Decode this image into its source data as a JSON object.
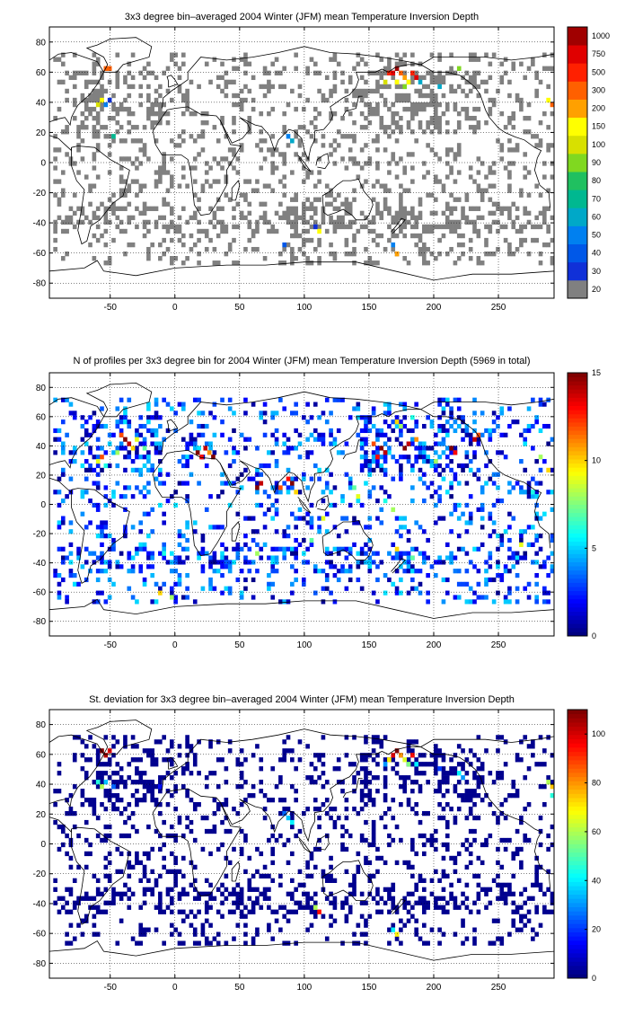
{
  "chart_data": [
    {
      "type": "heatmap",
      "title": "3x3 degree bin–averaged 2004 Winter (JFM) mean Temperature Inversion Depth",
      "xlabel": "",
      "ylabel": "",
      "xlim": [
        -97,
        293
      ],
      "ylim": [
        -90,
        90
      ],
      "xticks": [
        -50,
        0,
        50,
        100,
        150,
        200,
        250
      ],
      "yticks": [
        80,
        60,
        40,
        20,
        0,
        -20,
        -40,
        -60,
        -80
      ],
      "grid": true,
      "colorbar": {
        "scale": "categorical",
        "labels": [
          "20",
          "30",
          "40",
          "50",
          "60",
          "70",
          "80",
          "90",
          "100",
          "150",
          "200",
          "300",
          "500",
          "750",
          "1000"
        ],
        "colors": [
          "#808080",
          "#1030d8",
          "#0058e8",
          "#0080f0",
          "#00a8c8",
          "#00b890",
          "#20c060",
          "#80d820",
          "#d8e000",
          "#ffff00",
          "#ffa000",
          "#ff6000",
          "#ff2000",
          "#e00000",
          "#a00000"
        ]
      },
      "cells": [
        [
          -55,
          61,
          11
        ],
        [
          -52,
          61,
          11
        ],
        [
          -58,
          40,
          9
        ],
        [
          -61,
          37,
          8
        ],
        [
          -55,
          37,
          3
        ],
        [
          -52,
          40,
          1
        ],
        [
          164,
          58,
          12
        ],
        [
          167,
          58,
          13
        ],
        [
          170,
          61,
          14
        ],
        [
          173,
          58,
          11
        ],
        [
          176,
          55,
          10
        ],
        [
          179,
          52,
          9
        ],
        [
          182,
          58,
          12
        ],
        [
          185,
          55,
          13
        ],
        [
          170,
          52,
          9
        ],
        [
          176,
          49,
          7
        ],
        [
          188,
          52,
          4
        ],
        [
          161,
          52,
          8
        ],
        [
          -49,
          16,
          5
        ],
        [
          86,
          16,
          3
        ],
        [
          89,
          13,
          4
        ],
        [
          110,
          -47,
          9
        ],
        [
          107,
          -44,
          1
        ],
        [
          83,
          -56,
          2
        ],
        [
          170,
          -62,
          10
        ],
        [
          167,
          -56,
          3
        ],
        [
          290,
          37,
          11
        ],
        [
          287,
          40,
          9
        ],
        [
          203,
          49,
          4
        ],
        [
          218,
          61,
          7
        ]
      ]
    },
    {
      "type": "heatmap",
      "title": "N of profiles per 3x3 degree bin for 2004 Winter (JFM) mean Temperature Inversion Depth  (5969 in total)",
      "xlabel": "",
      "ylabel": "",
      "xlim": [
        -97,
        293
      ],
      "ylim": [
        -90,
        90
      ],
      "xticks": [
        -50,
        0,
        50,
        100,
        150,
        200,
        250
      ],
      "yticks": [
        80,
        60,
        40,
        20,
        0,
        -20,
        -40,
        -60,
        -80
      ],
      "grid": true,
      "colorbar": {
        "scale": "linear",
        "min": 0,
        "max": 15,
        "ticks": [
          0,
          5,
          10,
          15
        ]
      },
      "total_profiles": 5969,
      "cells": [
        [
          -40,
          43,
          15
        ],
        [
          -37,
          40,
          14
        ],
        [
          -43,
          46,
          12
        ],
        [
          -34,
          37,
          10
        ],
        [
          -46,
          34,
          8
        ],
        [
          -31,
          43,
          9
        ],
        [
          -25,
          37,
          7
        ],
        [
          -58,
          31,
          12
        ],
        [
          -61,
          28,
          9
        ],
        [
          -55,
          25,
          6
        ],
        [
          16,
          34,
          15
        ],
        [
          22,
          37,
          14
        ],
        [
          28,
          31,
          15
        ],
        [
          19,
          31,
          13
        ],
        [
          25,
          34,
          11
        ],
        [
          62,
          10,
          15
        ],
        [
          65,
          13,
          14
        ],
        [
          89,
          13,
          15
        ],
        [
          86,
          16,
          13
        ],
        [
          80,
          10,
          12
        ],
        [
          92,
          7,
          10
        ],
        [
          158,
          37,
          15
        ],
        [
          161,
          34,
          14
        ],
        [
          155,
          31,
          13
        ],
        [
          152,
          40,
          12
        ],
        [
          176,
          37,
          15
        ],
        [
          179,
          40,
          14
        ],
        [
          185,
          43,
          11
        ],
        [
          212,
          37,
          15
        ],
        [
          215,
          34,
          13
        ],
        [
          200,
          28,
          8
        ],
        [
          230,
          43,
          14
        ],
        [
          233,
          46,
          12
        ],
        [
          170,
          55,
          10
        ],
        [
          173,
          52,
          8
        ],
        [
          182,
          58,
          6
        ],
        [
          137,
          10,
          7
        ],
        [
          140,
          4,
          9
        ],
        [
          161,
          1,
          6
        ],
        [
          167,
          -5,
          8
        ],
        [
          170,
          -32,
          10
        ],
        [
          182,
          -38,
          7
        ],
        [
          113,
          -11,
          9
        ],
        [
          104,
          -26,
          7
        ],
        [
          62,
          -35,
          8
        ],
        [
          -10,
          -35,
          6
        ],
        [
          -13,
          -62,
          10
        ],
        [
          -4,
          -65,
          8
        ],
        [
          266,
          -29,
          9
        ],
        [
          275,
          7,
          6
        ],
        [
          287,
          22,
          10
        ],
        [
          281,
          31,
          8
        ]
      ]
    },
    {
      "type": "heatmap",
      "title": "St. deviation for 3x3 degree bin–averaged 2004 Winter (JFM) mean Temperature Inversion Depth",
      "xlabel": "",
      "ylabel": "",
      "xlim": [
        -97,
        293
      ],
      "ylim": [
        -90,
        90
      ],
      "xticks": [
        -50,
        0,
        50,
        100,
        150,
        200,
        250
      ],
      "yticks": [
        80,
        60,
        40,
        20,
        0,
        -20,
        -40,
        -60,
        -80
      ],
      "grid": true,
      "colorbar": {
        "scale": "linear",
        "min": 0,
        "max": 110,
        "ticks": [
          0,
          20,
          40,
          60,
          80,
          100
        ]
      },
      "cells": [
        [
          -58,
          61,
          110
        ],
        [
          -55,
          58,
          105
        ],
        [
          -52,
          61,
          100
        ],
        [
          -61,
          40,
          45
        ],
        [
          -58,
          37,
          60
        ],
        [
          -55,
          40,
          35
        ],
        [
          -49,
          37,
          25
        ],
        [
          167,
          58,
          100
        ],
        [
          170,
          61,
          110
        ],
        [
          173,
          58,
          80
        ],
        [
          176,
          55,
          65
        ],
        [
          179,
          52,
          55
        ],
        [
          164,
          55,
          70
        ],
        [
          182,
          58,
          95
        ],
        [
          185,
          52,
          40
        ],
        [
          161,
          52,
          30
        ],
        [
          290,
          37,
          75
        ],
        [
          287,
          40,
          60
        ],
        [
          290,
          31,
          45
        ],
        [
          218,
          46,
          40
        ],
        [
          221,
          43,
          30
        ],
        [
          86,
          16,
          35
        ],
        [
          89,
          13,
          40
        ],
        [
          83,
          19,
          25
        ],
        [
          110,
          -47,
          95
        ],
        [
          107,
          -44,
          60
        ],
        [
          170,
          -62,
          70
        ],
        [
          167,
          -59,
          40
        ],
        [
          203,
          49,
          20
        ],
        [
          -13,
          37,
          15
        ]
      ]
    }
  ]
}
